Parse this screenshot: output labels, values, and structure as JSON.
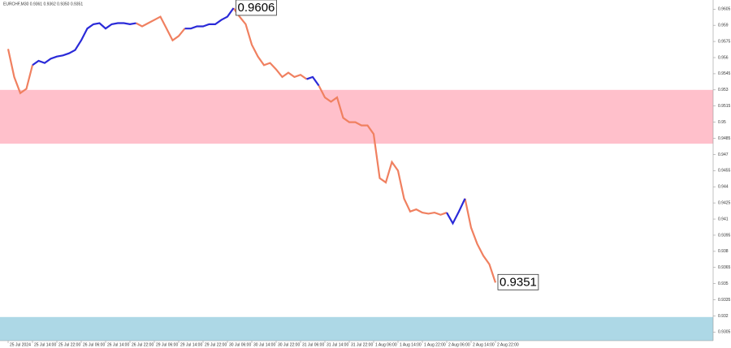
{
  "chart_data": {
    "type": "line",
    "title": "EURCHF,M30  0.9361 0.9362 0.9350 0.9351",
    "categories": [
      "25 Jul 2024",
      null,
      null,
      null,
      "25 Jul 14:00",
      null,
      null,
      null,
      "25 Jul 22:00",
      null,
      null,
      null,
      "26 Jul 06:00",
      null,
      null,
      null,
      "26 Jul 14:00",
      null,
      null,
      null,
      "26 Jul 22:00",
      null,
      null,
      null,
      "29 Jul 06:00",
      null,
      null,
      null,
      "29 Jul 14:00",
      null,
      null,
      null,
      "29 Jul 22:00",
      null,
      null,
      null,
      "30 Jul 06:00",
      null,
      null,
      null,
      "30 Jul 14:00",
      null,
      null,
      null,
      "30 Jul 22:00",
      null,
      null,
      null,
      "31 Jul 06:00",
      null,
      null,
      null,
      "31 Jul 14:00",
      null,
      null,
      null,
      "31 Jul 22:00",
      null,
      null,
      null,
      "1 Aug 06:00",
      null,
      null,
      null,
      "1 Aug 14:00",
      null,
      null,
      null,
      "1 Aug 22:00",
      null,
      null,
      null,
      "2 Aug 06:00",
      null,
      null,
      null,
      "2 Aug 14:00",
      null,
      null,
      null,
      "2 Aug 22:00"
    ],
    "series": [
      {
        "color": "#f08060",
        "values": [
          0.9568,
          0.9542,
          0.9527,
          0.9531,
          0.9553,
          null,
          null,
          null,
          null,
          null,
          null,
          null,
          null,
          null,
          null,
          null,
          null,
          null,
          null,
          null,
          null,
          0.9592,
          0.9589,
          0.9592,
          0.9595,
          0.9598,
          0.9587,
          0.9576,
          0.958,
          0.9587,
          null,
          null,
          null,
          null,
          null,
          null,
          null,
          0.9606,
          0.9598,
          0.9591,
          0.9572,
          0.9561,
          0.9553,
          0.9555,
          0.9549,
          0.9542,
          0.9546,
          0.9542,
          0.9544,
          0.954,
          null,
          0.9534,
          0.9523,
          0.9519,
          0.9523,
          0.9504,
          0.95,
          0.95,
          0.9497,
          0.9497,
          0.9489,
          0.9448,
          0.9444,
          0.9463,
          0.9455,
          0.9429,
          0.9417,
          0.9419,
          0.9416,
          0.9415,
          0.9416,
          0.9414,
          0.9416,
          null,
          null,
          0.9429,
          0.9402,
          0.9387,
          0.9376,
          0.9368,
          0.9351
        ]
      },
      {
        "color": "#2a2ad8",
        "values": [
          null,
          null,
          null,
          null,
          0.9553,
          0.9557,
          0.9555,
          0.9559,
          0.9561,
          0.9562,
          0.9564,
          0.9567,
          0.9576,
          0.9587,
          0.9591,
          0.9592,
          0.9587,
          0.9591,
          0.9592,
          0.9592,
          0.9591,
          0.9592,
          null,
          null,
          null,
          null,
          null,
          null,
          null,
          0.9587,
          0.9587,
          0.9589,
          0.9589,
          0.9591,
          0.9591,
          0.9595,
          0.9598,
          0.9606,
          null,
          null,
          null,
          null,
          null,
          null,
          null,
          null,
          null,
          null,
          null,
          0.954,
          0.9542,
          0.9534,
          null,
          null,
          null,
          null,
          null,
          null,
          null,
          null,
          null,
          null,
          null,
          null,
          null,
          null,
          null,
          null,
          null,
          null,
          null,
          null,
          0.9416,
          0.9406,
          0.9417,
          0.9429,
          null,
          null,
          null,
          null,
          null
        ]
      }
    ],
    "zones": [
      {
        "from": 0.953,
        "to": 0.948,
        "color": "#ffc0cb"
      },
      {
        "from": 0.9319,
        "to": 0.9297,
        "color": "#add8e6"
      }
    ],
    "annotations": [
      {
        "value": 0.9606,
        "label": "0.9606"
      },
      {
        "value": 0.9351,
        "label": "0.9351"
      }
    ],
    "ylim": [
      0.9297,
      0.96135
    ],
    "yticks": [
      0.9605,
      0.959,
      0.9575,
      0.956,
      0.9545,
      0.953,
      0.9515,
      0.95,
      0.9485,
      0.947,
      0.9455,
      0.944,
      0.9425,
      0.941,
      0.9395,
      0.938,
      0.9365,
      0.935,
      0.9335,
      0.932,
      0.9305
    ],
    "grid": false
  }
}
